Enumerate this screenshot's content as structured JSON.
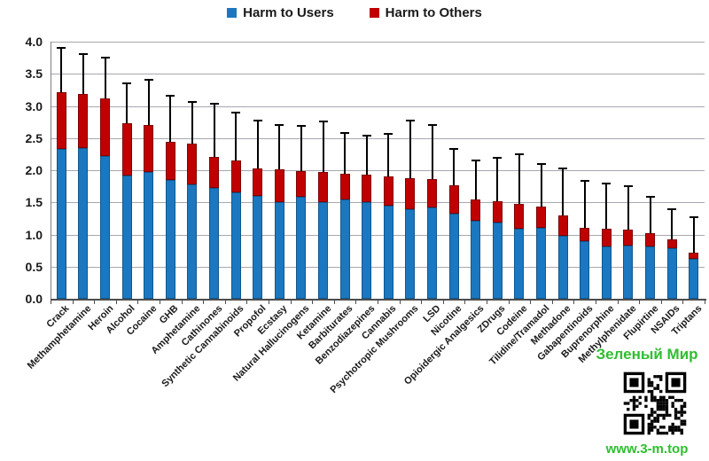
{
  "legend": {
    "users_label": "Harm to Users",
    "others_label": "Harm to Others"
  },
  "colors": {
    "users_fill": "#1b78c0",
    "users_border": "#11578d",
    "others_fill": "#c00000",
    "others_border": "#7e0000",
    "gridline": "#a7a7b0",
    "axis": "#4d4d4d",
    "error_bar": "#000000",
    "watermark_green": "#2fbe2f"
  },
  "watermark": {
    "title": "Зеленый Мир",
    "url": "www.3-m.top"
  },
  "chart_data": {
    "type": "bar",
    "stacked": true,
    "title": "",
    "xlabel": "",
    "ylabel": "",
    "ylim": [
      0.0,
      4.0
    ],
    "ytick_step": 0.5,
    "ytick_labels": [
      "0.0",
      "0.5",
      "1.0",
      "1.5",
      "2.0",
      "2.5",
      "3.0",
      "3.5",
      "4.0"
    ],
    "grid": true,
    "legend_position": "top-center",
    "error_bars": "upper-only",
    "categories": [
      "Crack",
      "Methamphetamine",
      "Heroin",
      "Alcohol",
      "Cocaine",
      "GHB",
      "Amphetamine",
      "Cathinones",
      "Synthetic Cannabinoids",
      "Propofol",
      "Ecstasy",
      "Natural Hallucinogens",
      "Ketamine",
      "Barbiturates",
      "Benzodiazepines",
      "Cannabis",
      "Psychotropic Mushrooms",
      "LSD",
      "Nicotine",
      "Opioidergic Analgesics",
      "ZDrugs",
      "Codeine",
      "Tilidine/Tramadol",
      "Methadone",
      "Gabapentinoids",
      "Buprenorphine",
      "Methylphenidate",
      "Flupirtine",
      "NSAIDs",
      "Triptans"
    ],
    "series": [
      {
        "name": "Harm to Users",
        "values": [
          2.33,
          2.34,
          2.22,
          1.92,
          1.97,
          1.85,
          1.78,
          1.72,
          1.66,
          1.6,
          1.51,
          1.58,
          1.5,
          1.54,
          1.51,
          1.45,
          1.39,
          1.42,
          1.33,
          1.22,
          1.19,
          1.09,
          1.11,
          0.98,
          0.89,
          0.82,
          0.83,
          0.81,
          0.79,
          0.62
        ]
      },
      {
        "name": "Harm to Others",
        "values": [
          0.89,
          0.85,
          0.9,
          0.81,
          0.73,
          0.59,
          0.63,
          0.49,
          0.49,
          0.43,
          0.5,
          0.41,
          0.47,
          0.41,
          0.42,
          0.46,
          0.48,
          0.44,
          0.43,
          0.33,
          0.33,
          0.38,
          0.33,
          0.32,
          0.21,
          0.27,
          0.24,
          0.21,
          0.13,
          0.1
        ]
      }
    ],
    "error_bar_tops": [
      3.9,
      3.81,
      3.75,
      3.35,
      3.41,
      3.16,
      3.06,
      3.04,
      2.89,
      2.77,
      2.71,
      2.69,
      2.76,
      2.58,
      2.54,
      2.56,
      2.77,
      2.7,
      2.33,
      2.15,
      2.19,
      2.25,
      2.1,
      2.03,
      1.83,
      1.79,
      1.75,
      1.59,
      1.39,
      1.27
    ]
  }
}
